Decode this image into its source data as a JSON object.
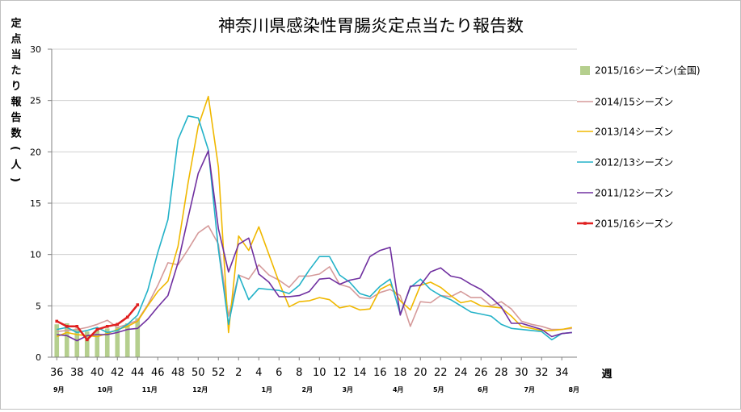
{
  "chart_data": {
    "type": "line",
    "title": "神奈川県感染性胃腸炎定点当たり報告数",
    "ylabel": "定点当たり報告数(人)",
    "xlabel": "週",
    "ylim": [
      0,
      30
    ],
    "yticks": [
      0,
      5,
      10,
      15,
      20,
      25,
      30
    ],
    "grid": true,
    "legend_position": "right",
    "weeks": [
      36,
      37,
      38,
      39,
      40,
      41,
      42,
      43,
      44,
      45,
      46,
      47,
      48,
      49,
      50,
      51,
      52,
      1,
      2,
      3,
      4,
      5,
      6,
      7,
      8,
      9,
      10,
      11,
      12,
      13,
      14,
      15,
      16,
      17,
      18,
      19,
      20,
      21,
      22,
      23,
      24,
      25,
      26,
      27,
      28,
      29,
      30,
      31,
      32,
      33,
      34,
      35
    ],
    "tick_labels": [
      "36",
      "38",
      "40",
      "42",
      "44",
      "46",
      "48",
      "50",
      "52",
      "2",
      "4",
      "6",
      "8",
      "10",
      "12",
      "14",
      "16",
      "18",
      "20",
      "22",
      "24",
      "26",
      "28",
      "30",
      "32",
      "34"
    ],
    "months": [
      {
        "label": "9月",
        "at": 36.2
      },
      {
        "label": "10月",
        "at": 40.8
      },
      {
        "label": "11月",
        "at": 45.2
      },
      {
        "label": "12月",
        "at": 50.2
      },
      {
        "label": "1月",
        "at": 4.8
      },
      {
        "label": "2月",
        "at": 8.8
      },
      {
        "label": "3月",
        "at": 12.8
      },
      {
        "label": "4月",
        "at": 17.8
      },
      {
        "label": "5月",
        "at": 21.8
      },
      {
        "label": "6月",
        "at": 26.2
      },
      {
        "label": "7月",
        "at": 30.8
      },
      {
        "label": "8月",
        "at": 35.2
      }
    ],
    "series": [
      {
        "name": "2015/16シーズン(全国)",
        "kind": "bar",
        "color": "#b5cf8e",
        "values": [
          3.2,
          3.3,
          2.8,
          2.5,
          2.6,
          2.8,
          3.0,
          3.3,
          3.8
        ]
      },
      {
        "name": "2014/15シーズン",
        "kind": "line",
        "color": "#d59a9a",
        "values": [
          2.5,
          2.6,
          2.7,
          2.9,
          3.2,
          3.6,
          2.9,
          3.2,
          3.6,
          5.1,
          7.0,
          9.2,
          9.0,
          10.5,
          12.1,
          12.8,
          11.0,
          4.0,
          8.0,
          7.6,
          9.0,
          8.0,
          7.5,
          6.8,
          7.9,
          7.9,
          8.1,
          8.8,
          7.1,
          6.8,
          5.8,
          5.7,
          6.3,
          6.6,
          6.0,
          3.0,
          5.4,
          5.3,
          6.0,
          5.9,
          6.4,
          5.8,
          5.8,
          5.0,
          5.4,
          4.7,
          3.5,
          3.2,
          3.0,
          2.7,
          2.7,
          2.8
        ]
      },
      {
        "name": "2013/14シーズン",
        "kind": "line",
        "color": "#f0b800",
        "values": [
          2.0,
          2.4,
          2.2,
          2.1,
          2.0,
          2.3,
          2.7,
          3.0,
          3.5,
          5.0,
          6.4,
          7.4,
          10.8,
          17.0,
          22.5,
          25.4,
          18.5,
          2.4,
          11.8,
          10.4,
          12.7,
          10.0,
          7.3,
          4.9,
          5.4,
          5.5,
          5.8,
          5.6,
          4.8,
          5.0,
          4.6,
          4.7,
          6.6,
          7.1,
          5.5,
          4.6,
          7.0,
          7.3,
          6.8,
          6.0,
          5.3,
          5.5,
          5.0,
          4.9,
          4.8,
          4.0,
          3.0,
          2.8,
          2.6,
          2.6,
          2.7,
          2.9
        ]
      },
      {
        "name": "2012/13シーズン",
        "kind": "line",
        "color": "#23b2c8",
        "values": [
          2.7,
          2.9,
          2.4,
          2.6,
          2.9,
          2.4,
          2.6,
          3.2,
          4.1,
          6.5,
          10.2,
          13.4,
          21.2,
          23.5,
          23.3,
          20.2,
          10.5,
          3.2,
          8.0,
          5.6,
          6.7,
          6.6,
          6.5,
          6.2,
          7.0,
          8.5,
          9.8,
          9.8,
          8.0,
          7.3,
          6.2,
          5.9,
          6.9,
          7.6,
          4.2,
          6.8,
          7.6,
          6.6,
          6.0,
          5.6,
          5.0,
          4.4,
          4.2,
          4.0,
          3.2,
          2.8,
          2.7,
          2.6,
          2.5,
          1.7,
          2.3,
          2.4
        ]
      },
      {
        "name": "2011/12シーズン",
        "kind": "line",
        "color": "#7030a0",
        "values": [
          2.2,
          2.1,
          1.6,
          2.1,
          2.2,
          2.2,
          2.4,
          2.7,
          2.8,
          3.7,
          4.9,
          6.0,
          9.2,
          13.6,
          17.9,
          20.1,
          12.5,
          8.3,
          11.0,
          11.6,
          8.1,
          7.3,
          5.9,
          5.9,
          6.0,
          6.4,
          7.6,
          7.7,
          7.1,
          7.5,
          7.7,
          9.8,
          10.4,
          10.7,
          4.1,
          6.9,
          7.0,
          8.3,
          8.7,
          7.9,
          7.7,
          7.1,
          6.6,
          5.8,
          4.9,
          3.3,
          3.3,
          3.0,
          2.7,
          2.0,
          2.3,
          2.4
        ]
      },
      {
        "name": "2015/16シーズン",
        "kind": "line",
        "color": "#e02020",
        "marker": true,
        "values": [
          3.5,
          3.0,
          3.0,
          1.7,
          2.7,
          3.0,
          3.2,
          3.9,
          5.1
        ]
      }
    ]
  }
}
